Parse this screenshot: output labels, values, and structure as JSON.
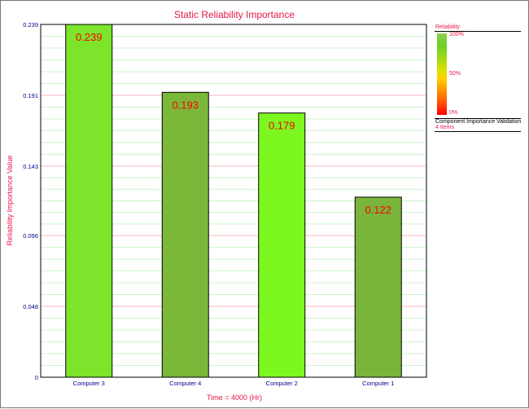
{
  "chart_data": {
    "type": "bar",
    "title": "Static Reliability Importance",
    "xlabel": "Time = 4000 (Hr)",
    "ylabel": "Reliability Importance Value",
    "categories": [
      "Computer 3",
      "Computer 4",
      "Computer 2",
      "Computer 1"
    ],
    "values": [
      0.239,
      0.193,
      0.179,
      0.122
    ],
    "value_labels": [
      "0.239",
      "0.193",
      "0.179",
      "0.122"
    ],
    "bar_colors": [
      "#7ce52b",
      "#7bb83a",
      "#7cf71f",
      "#78b53a"
    ],
    "ylim": [
      0,
      0.239
    ],
    "yticks": [
      0,
      0.048,
      0.096,
      0.143,
      0.191,
      0.239
    ],
    "ytick_labels": [
      "0",
      "0.048",
      "0.096",
      "0.143",
      "0.191",
      "0.239"
    ],
    "grid": true,
    "legend_placement": "right"
  },
  "legend": {
    "title": "Reliability",
    "ticks": [
      "100%",
      "50%",
      "0%"
    ],
    "document": "Component Importance Validation",
    "items": "4 Items"
  },
  "colors": {
    "title": "#e8174a",
    "axis_text": "#00008b",
    "value_label": "#ff0000",
    "grid_major": "#ffb6c1",
    "grid_minor": "#ccf5cc"
  }
}
